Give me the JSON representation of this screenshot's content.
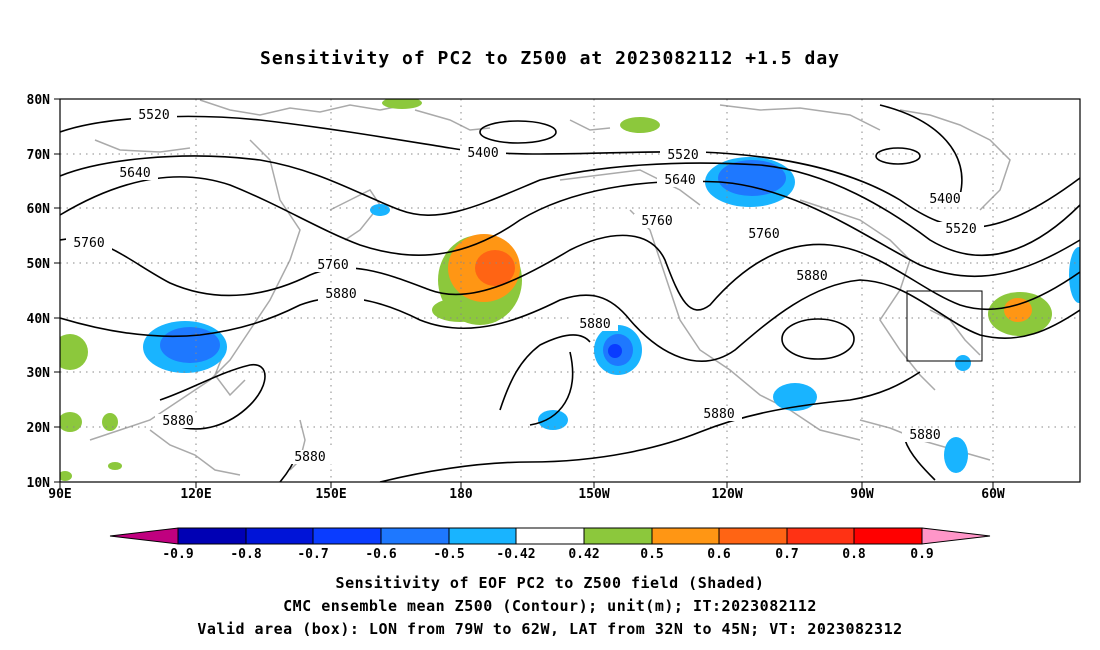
{
  "title": "Sensitivity of PC2 to Z500 at 2023082112 +1.5 day",
  "map": {
    "lat_labels": [
      "80N",
      "70N",
      "60N",
      "50N",
      "40N",
      "30N",
      "20N",
      "10N"
    ],
    "lon_labels": [
      "90E",
      "120E",
      "150E",
      "180",
      "150W",
      "120W",
      "90W",
      "60W"
    ]
  },
  "contour_labels": [
    {
      "value": "5520"
    },
    {
      "value": "5400"
    },
    {
      "value": "5520"
    },
    {
      "value": "5640"
    },
    {
      "value": "5640"
    },
    {
      "value": "5760"
    },
    {
      "value": "5760"
    },
    {
      "value": "5760"
    },
    {
      "value": "5760"
    },
    {
      "value": "5880"
    },
    {
      "value": "5880"
    },
    {
      "value": "5880"
    },
    {
      "value": "5880"
    },
    {
      "value": "5880"
    },
    {
      "value": "5880"
    },
    {
      "value": "5880"
    },
    {
      "value": "5400"
    },
    {
      "value": "5520"
    }
  ],
  "colorbar": {
    "colors": [
      "#c0007f",
      "#0000b4",
      "#0014d8",
      "#0a3cff",
      "#1e78ff",
      "#19b4ff",
      "#ffffff",
      "#8cc83c",
      "#ff9614",
      "#ff6414",
      "#ff3214",
      "#ff0000",
      "#ff96c8"
    ],
    "labels": [
      "-0.9",
      "-0.8",
      "-0.7",
      "-0.6",
      "-0.5",
      "-0.42",
      "0.42",
      "0.5",
      "0.6",
      "0.7",
      "0.8",
      "0.9"
    ]
  },
  "footer": {
    "line1": "Sensitivity of EOF PC2 to Z500 field (Shaded)",
    "line2": "CMC ensemble mean Z500 (Contour); unit(m); IT:2023082112",
    "line3": "Valid area (box): LON from 79W to 62W, LAT from 32N to 45N; VT: 2023082312"
  }
}
